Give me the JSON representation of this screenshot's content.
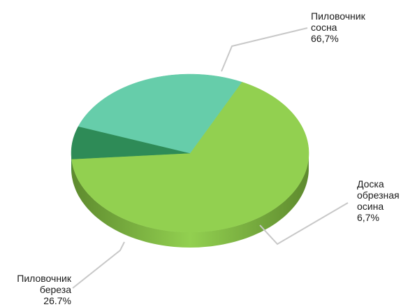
{
  "chart_data": {
    "type": "pie",
    "style": "3d",
    "slices": [
      {
        "name": "Пиловочник сосна",
        "value_label": "66,7%",
        "value": 66.7,
        "color": "#92d050",
        "side_color": "#5e8a2e"
      },
      {
        "name": "Доска обрезная осина",
        "value_label": "6,7%",
        "value": 6.7,
        "color": "#2e8b57",
        "side_color": "#1f6b40"
      },
      {
        "name": "Пиловочник береза",
        "value_label": "26.7%",
        "value": 26.7,
        "color": "#66cdaa",
        "side_color": "#3f9a78"
      }
    ],
    "labels": [
      {
        "lines": [
          "Пиловочник",
          "сосна",
          "66,7%"
        ]
      },
      {
        "lines": [
          "Доска",
          "обрезная",
          "осина",
          "6,7%"
        ]
      },
      {
        "lines": [
          "Пиловочник",
          "береза",
          "26.7%"
        ]
      }
    ],
    "leader_color": "#c8c8c8"
  }
}
